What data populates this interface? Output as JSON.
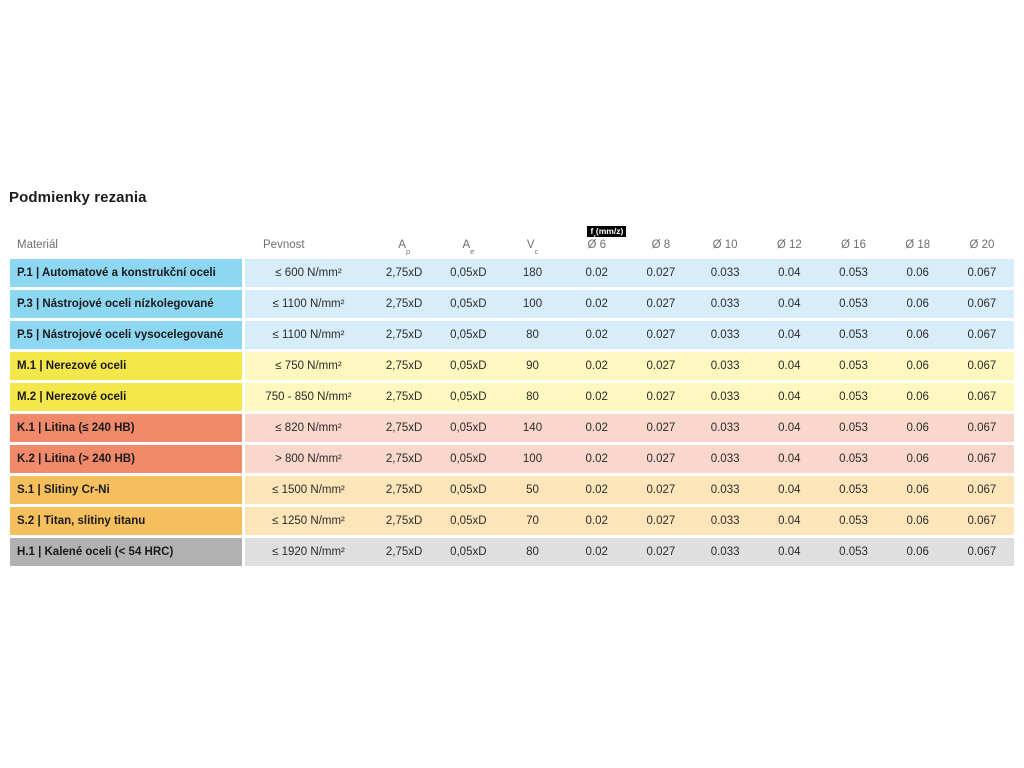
{
  "page": {
    "title": "Podmienky rezania"
  },
  "colors": {
    "P": {
      "label": "#8ed7f2",
      "row": "#d7eefa"
    },
    "M": {
      "label": "#f3e74b",
      "row": "#fcf8c0"
    },
    "K": {
      "label": "#f08a6b",
      "row": "#f9d7cb"
    },
    "S": {
      "label": "#f5bf5e",
      "row": "#fce5b8"
    },
    "H": {
      "label": "#b1b1b1",
      "row": "#dfdfdf"
    }
  },
  "table": {
    "headers": {
      "material": "Materiál",
      "pevnost": "Pevnost",
      "ap": {
        "base": "A",
        "sub": "p"
      },
      "ae": {
        "base": "A",
        "sub": "e"
      },
      "vc": {
        "base": "V",
        "sub": "c"
      },
      "diameters": [
        "Ø 6",
        "Ø 8",
        "Ø 10",
        "Ø 12",
        "Ø 16",
        "Ø 18",
        "Ø 20"
      ]
    },
    "fz_badge": {
      "base": "f",
      "sub": "z",
      "rest": "(mm/z)"
    },
    "rows": [
      {
        "group": "P",
        "label": "P.1 | Automatové a konstrukční oceli",
        "pevnost": "≤ 600 N/mm²",
        "ap": "2,75xD",
        "ae": "0,05xD",
        "vc": "180",
        "fz": [
          "0.02",
          "0.027",
          "0.033",
          "0.04",
          "0.053",
          "0.06",
          "0.067"
        ]
      },
      {
        "group": "P",
        "label": "P.3 | Nástrojové oceli nízkolegované",
        "pevnost": "≤ 1100 N/mm²",
        "ap": "2,75xD",
        "ae": "0,05xD",
        "vc": "100",
        "fz": [
          "0.02",
          "0.027",
          "0.033",
          "0.04",
          "0.053",
          "0.06",
          "0.067"
        ]
      },
      {
        "group": "P",
        "label": "P.5 | Nástrojové oceli vysocelegované",
        "pevnost": "≤ 1100 N/mm²",
        "ap": "2,75xD",
        "ae": "0,05xD",
        "vc": "80",
        "fz": [
          "0.02",
          "0.027",
          "0.033",
          "0.04",
          "0.053",
          "0.06",
          "0.067"
        ]
      },
      {
        "group": "M",
        "label": "M.1 | Nerezové oceli",
        "pevnost": "≤ 750 N/mm²",
        "ap": "2,75xD",
        "ae": "0,05xD",
        "vc": "90",
        "fz": [
          "0.02",
          "0.027",
          "0.033",
          "0.04",
          "0.053",
          "0.06",
          "0.067"
        ]
      },
      {
        "group": "M",
        "label": "M.2 | Nerezové oceli",
        "pevnost": "750 - 850 N/mm²",
        "ap": "2,75xD",
        "ae": "0,05xD",
        "vc": "80",
        "fz": [
          "0.02",
          "0.027",
          "0.033",
          "0.04",
          "0.053",
          "0.06",
          "0.067"
        ]
      },
      {
        "group": "K",
        "label": "K.1 | Litina (≤ 240 HB)",
        "pevnost": "≤ 820 N/mm²",
        "ap": "2,75xD",
        "ae": "0,05xD",
        "vc": "140",
        "fz": [
          "0.02",
          "0.027",
          "0.033",
          "0.04",
          "0.053",
          "0.06",
          "0.067"
        ]
      },
      {
        "group": "K",
        "label": "K.2 | Litina (> 240 HB)",
        "pevnost": "> 800 N/mm²",
        "ap": "2,75xD",
        "ae": "0,05xD",
        "vc": "100",
        "fz": [
          "0.02",
          "0.027",
          "0.033",
          "0.04",
          "0.053",
          "0.06",
          "0.067"
        ]
      },
      {
        "group": "S",
        "label": "S.1 | Slitiny Cr-Ni",
        "pevnost": "≤ 1500 N/mm²",
        "ap": "2,75xD",
        "ae": "0,05xD",
        "vc": "50",
        "fz": [
          "0.02",
          "0.027",
          "0.033",
          "0.04",
          "0.053",
          "0.06",
          "0.067"
        ]
      },
      {
        "group": "S",
        "label": "S.2 | Titan, slitiny titanu",
        "pevnost": "≤ 1250 N/mm²",
        "ap": "2,75xD",
        "ae": "0,05xD",
        "vc": "70",
        "fz": [
          "0.02",
          "0.027",
          "0.033",
          "0.04",
          "0.053",
          "0.06",
          "0.067"
        ]
      },
      {
        "group": "H",
        "label": "H.1 | Kalené oceli (< 54 HRC)",
        "pevnost": "≤ 1920 N/mm²",
        "ap": "2,75xD",
        "ae": "0,05xD",
        "vc": "80",
        "fz": [
          "0.02",
          "0.027",
          "0.033",
          "0.04",
          "0.053",
          "0.06",
          "0.067"
        ]
      }
    ]
  }
}
